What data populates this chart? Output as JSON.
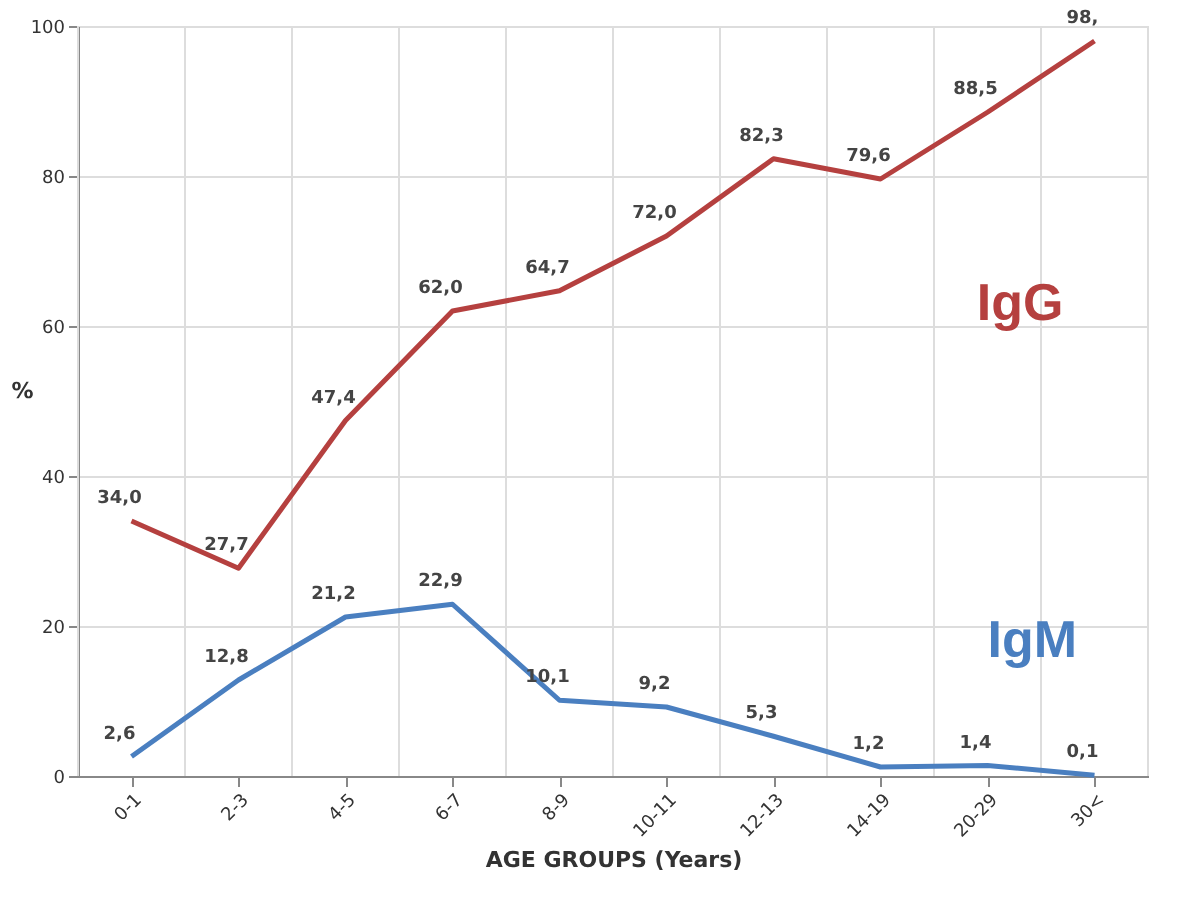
{
  "chart_data": {
    "type": "line",
    "xlabel": "AGE GROUPS (Years)",
    "ylabel": "%",
    "categories": [
      "0-1",
      "2-3",
      "4-5",
      "6-7",
      "8-9",
      "10-11",
      "12-13",
      "14-19",
      "20-29",
      "30<"
    ],
    "series": [
      {
        "name": "IgG",
        "color": "#b5403f",
        "values": [
          34.0,
          27.7,
          47.4,
          62.0,
          64.7,
          72.0,
          82.3,
          79.6,
          88.5,
          98
        ],
        "value_labels": [
          "34,0",
          "27,7",
          "47,4",
          "62,0",
          "64,7",
          "72,0",
          "82,3",
          "79,6",
          "88,5",
          "98,"
        ]
      },
      {
        "name": "IgM",
        "color": "#4a7fc0",
        "values": [
          2.6,
          12.8,
          21.2,
          22.9,
          10.1,
          9.2,
          5.3,
          1.2,
          1.4,
          0.1
        ],
        "value_labels": [
          "2,6",
          "12,8",
          "21,2",
          "22,9",
          "10,1",
          "9,2",
          "5,3",
          "1,2",
          "1,4",
          "0,1"
        ]
      }
    ],
    "ylim": [
      0,
      100
    ],
    "yticks": [
      0,
      20,
      40,
      60,
      80,
      100
    ],
    "grid": true,
    "legend": false,
    "marker": "none",
    "line_style": "solid"
  }
}
